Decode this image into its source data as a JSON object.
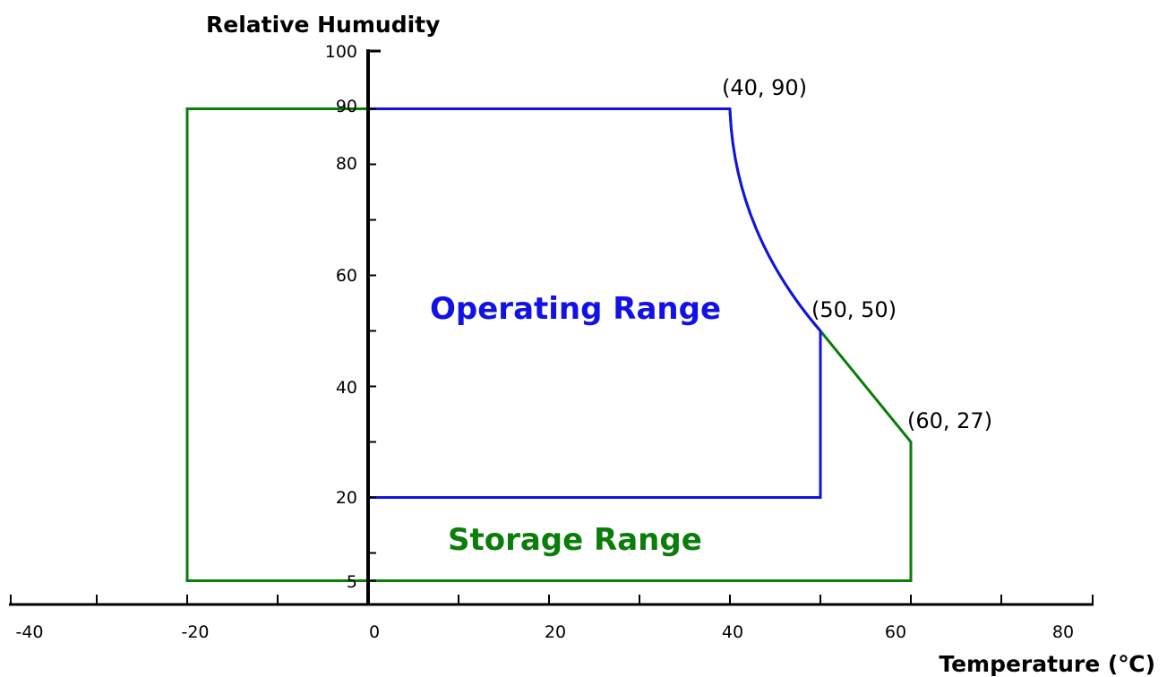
{
  "chart_data": {
    "type": "area",
    "ylabel": "Relative Humudity",
    "xlabel": "Temperature (℃)",
    "xlim": [
      -40,
      80
    ],
    "ylim": [
      0,
      100
    ],
    "x_tick_labels": [
      "-40",
      "-20",
      "0",
      "20",
      "40",
      "60",
      "80"
    ],
    "y_tick_labels": [
      "5",
      "20",
      "40",
      "60",
      "80",
      "90",
      "100"
    ],
    "grid": false,
    "series": [
      {
        "name": "Storage Range",
        "color": "#0a7d0a",
        "points": [
          [
            -20,
            5
          ],
          [
            -20,
            90
          ],
          [
            40,
            90
          ],
          [
            50,
            50
          ],
          [
            60,
            27
          ],
          [
            60,
            5
          ]
        ]
      },
      {
        "name": "Operating Range",
        "color": "#1212e6",
        "points": [
          [
            0,
            20
          ],
          [
            0,
            90
          ],
          [
            40,
            90
          ],
          [
            50,
            50
          ],
          [
            50,
            20
          ]
        ]
      }
    ],
    "annotations": [
      {
        "text": "(40, 90)",
        "x": 40,
        "y": 90
      },
      {
        "text": "(50, 50)",
        "x": 50,
        "y": 50
      },
      {
        "text": "(60, 27)",
        "x": 60,
        "y": 27
      }
    ]
  }
}
